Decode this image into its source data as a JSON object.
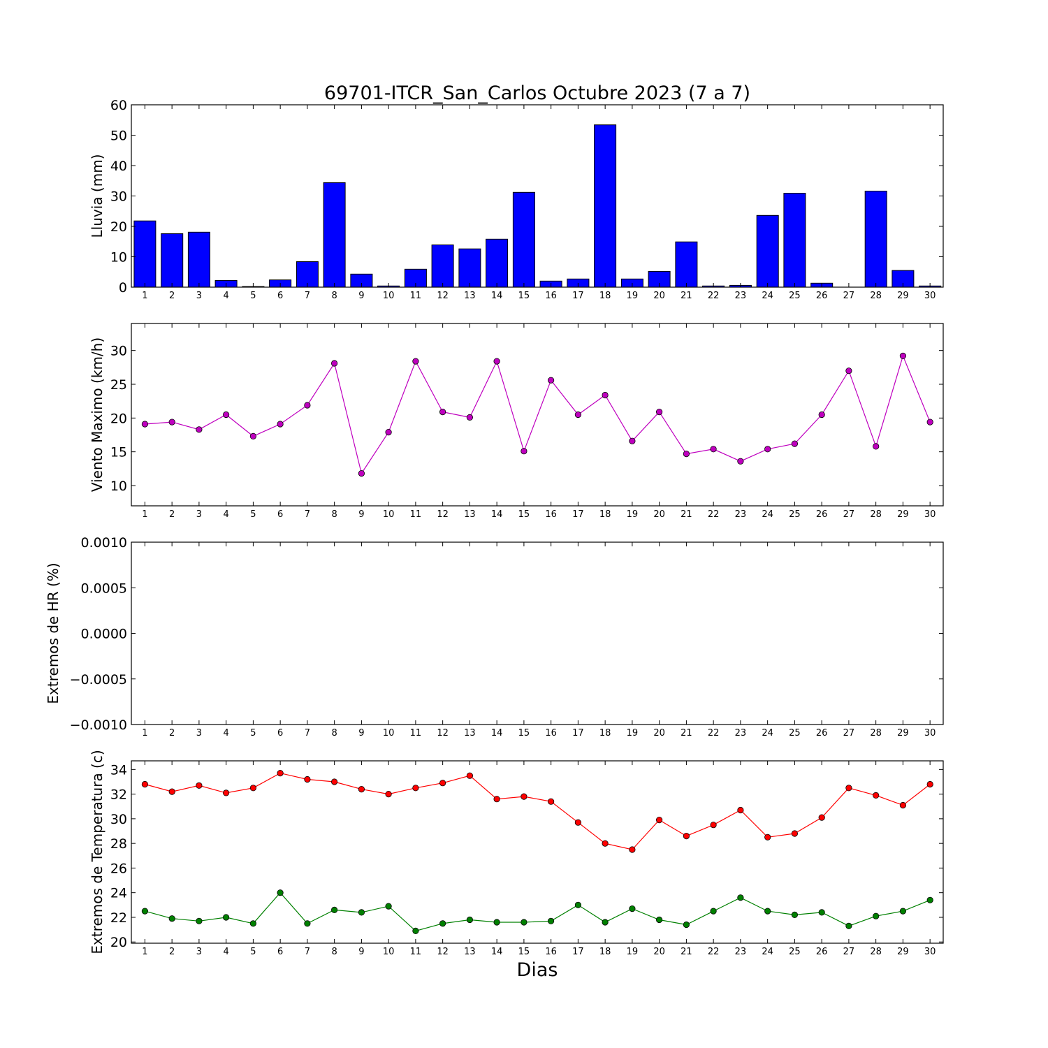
{
  "chart_data": [
    {
      "type": "bar",
      "title": "69701-ITCR_San_Carlos Octubre 2023  (7 a 7)",
      "ylabel": "Lluvia (mm)",
      "ylim": [
        0,
        60
      ],
      "yticks": [
        "0",
        "10",
        "20",
        "30",
        "40",
        "50",
        "60"
      ],
      "categories": [
        "1",
        "2",
        "3",
        "4",
        "5",
        "6",
        "7",
        "8",
        "9",
        "10",
        "11",
        "12",
        "13",
        "14",
        "15",
        "16",
        "17",
        "18",
        "19",
        "20",
        "21",
        "22",
        "23",
        "24",
        "25",
        "26",
        "27",
        "28",
        "29",
        "30"
      ],
      "values": [
        21.8,
        17.6,
        18.1,
        2.2,
        0.2,
        2.4,
        8.4,
        34.4,
        4.3,
        0.4,
        5.9,
        13.9,
        12.6,
        15.8,
        31.2,
        2.0,
        2.7,
        53.4,
        2.7,
        5.2,
        14.9,
        0.4,
        0.6,
        23.6,
        30.9,
        1.3,
        0.0,
        31.6,
        5.5,
        0.4
      ],
      "color": "#0000ff"
    },
    {
      "type": "line",
      "ylabel": "Viento Maximo (km/h)",
      "ylim": [
        7,
        34
      ],
      "yticks": [
        "10",
        "15",
        "20",
        "25",
        "30"
      ],
      "categories": [
        "1",
        "2",
        "3",
        "4",
        "5",
        "6",
        "7",
        "8",
        "9",
        "10",
        "11",
        "12",
        "13",
        "14",
        "15",
        "16",
        "17",
        "18",
        "19",
        "20",
        "21",
        "22",
        "23",
        "24",
        "25",
        "26",
        "27",
        "28",
        "29",
        "30"
      ],
      "series": [
        {
          "values": [
            19.1,
            19.4,
            18.3,
            20.5,
            17.3,
            19.1,
            21.9,
            28.1,
            11.8,
            17.9,
            28.4,
            20.9,
            20.1,
            28.4,
            15.1,
            25.6,
            20.5,
            23.4,
            16.6,
            20.9,
            14.7,
            15.4,
            13.6,
            15.4,
            16.2,
            20.5,
            27.0,
            15.8,
            29.2,
            19.4
          ],
          "color": "#bf00bf"
        }
      ]
    },
    {
      "type": "line",
      "ylabel": "Extremos de HR (%)",
      "ylim": [
        -0.001,
        0.001
      ],
      "yticks": [
        "−0.0010",
        "−0.0005",
        "0.0000",
        "0.0005",
        "0.0010"
      ],
      "categories": [
        "1",
        "2",
        "3",
        "4",
        "5",
        "6",
        "7",
        "8",
        "9",
        "10",
        "11",
        "12",
        "13",
        "14",
        "15",
        "16",
        "17",
        "18",
        "19",
        "20",
        "21",
        "22",
        "23",
        "24",
        "25",
        "26",
        "27",
        "28",
        "29",
        "30"
      ],
      "series": []
    },
    {
      "type": "line",
      "ylabel": "Extremos de Temperatura (c)",
      "xlabel": "Dias",
      "ylim": [
        19.9,
        34.7
      ],
      "yticks": [
        "20",
        "22",
        "24",
        "26",
        "28",
        "30",
        "32",
        "34"
      ],
      "categories": [
        "1",
        "2",
        "3",
        "4",
        "5",
        "6",
        "7",
        "8",
        "9",
        "10",
        "11",
        "12",
        "13",
        "14",
        "15",
        "16",
        "17",
        "18",
        "19",
        "20",
        "21",
        "22",
        "23",
        "24",
        "25",
        "26",
        "27",
        "28",
        "29",
        "30"
      ],
      "series": [
        {
          "values": [
            32.8,
            32.2,
            32.7,
            32.1,
            32.5,
            33.7,
            33.2,
            33.0,
            32.4,
            32.0,
            32.5,
            32.9,
            33.5,
            31.6,
            31.8,
            31.4,
            29.7,
            28.0,
            27.5,
            29.9,
            28.6,
            29.5,
            30.7,
            28.5,
            28.8,
            30.1,
            32.5,
            31.9,
            31.1,
            32.8
          ],
          "color": "#ff0000"
        },
        {
          "values": [
            22.5,
            21.9,
            21.7,
            22.0,
            21.5,
            24.0,
            21.5,
            22.6,
            22.4,
            22.9,
            20.9,
            21.5,
            21.8,
            21.6,
            21.6,
            21.7,
            23.0,
            21.6,
            22.7,
            21.8,
            21.4,
            22.5,
            23.6,
            22.5,
            22.2,
            22.4,
            21.3,
            22.1,
            22.5,
            23.4
          ],
          "color": "#008000"
        }
      ]
    }
  ]
}
